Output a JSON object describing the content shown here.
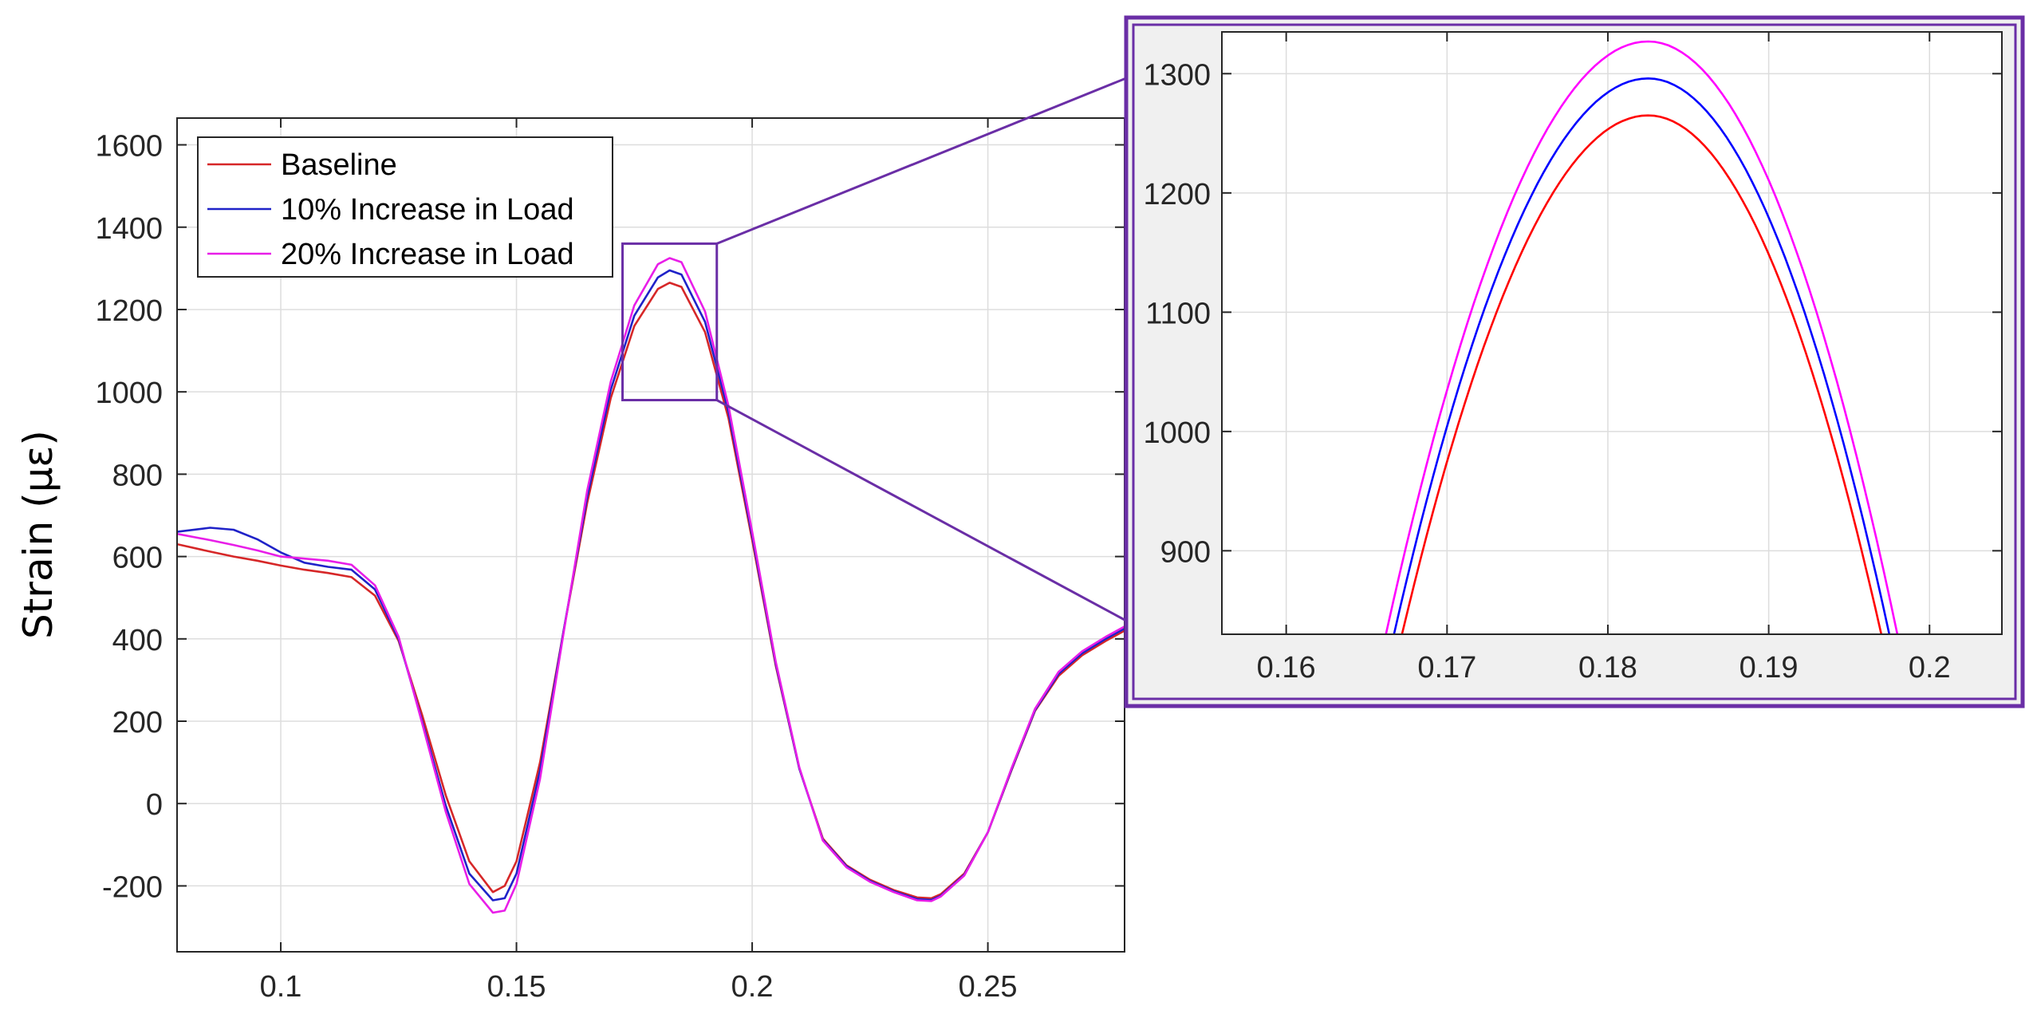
{
  "chart_data": [
    {
      "type": "line",
      "panel": "main",
      "title": "",
      "xlabel": "",
      "ylabel": "Strain (με)",
      "xlim": [
        0.078,
        0.279
      ],
      "ylim": [
        -360,
        1665
      ],
      "xticks": [
        0.1,
        0.15,
        0.2,
        0.25
      ],
      "xtick_labels": [
        "0.1",
        "0.15",
        "0.2",
        "0.25"
      ],
      "yticks": [
        -200,
        0,
        200,
        400,
        600,
        800,
        1000,
        1200,
        1400,
        1600
      ],
      "ytick_labels": [
        "-200",
        "0",
        "200",
        "400",
        "600",
        "800",
        "1000",
        "1200",
        "1400",
        "1600"
      ],
      "grid": true,
      "legend_position": "top-left",
      "series": [
        {
          "name": "Baseline",
          "color": "#d62728",
          "x": [
            0.078,
            0.085,
            0.09,
            0.095,
            0.1,
            0.105,
            0.11,
            0.115,
            0.12,
            0.125,
            0.13,
            0.135,
            0.14,
            0.145,
            0.1475,
            0.15,
            0.155,
            0.16,
            0.165,
            0.17,
            0.175,
            0.18,
            0.1825,
            0.185,
            0.19,
            0.195,
            0.2,
            0.205,
            0.21,
            0.215,
            0.22,
            0.225,
            0.23,
            0.235,
            0.238,
            0.24,
            0.245,
            0.25,
            0.255,
            0.26,
            0.265,
            0.27,
            0.275,
            0.279
          ],
          "y": [
            630,
            612,
            600,
            590,
            578,
            568,
            560,
            550,
            505,
            395,
            215,
            20,
            -140,
            -215,
            -200,
            -140,
            100,
            420,
            730,
            985,
            1160,
            1250,
            1265,
            1255,
            1145,
            935,
            640,
            335,
            85,
            -85,
            -150,
            -185,
            -210,
            -228,
            -230,
            -220,
            -170,
            -70,
            80,
            225,
            310,
            360,
            395,
            420
          ]
        },
        {
          "name": "10% Increase in Load",
          "color": "#1f22c8",
          "x": [
            0.078,
            0.085,
            0.09,
            0.095,
            0.1,
            0.105,
            0.11,
            0.115,
            0.12,
            0.125,
            0.13,
            0.135,
            0.14,
            0.145,
            0.1475,
            0.15,
            0.155,
            0.16,
            0.165,
            0.17,
            0.175,
            0.18,
            0.1825,
            0.185,
            0.19,
            0.195,
            0.2,
            0.205,
            0.21,
            0.215,
            0.22,
            0.225,
            0.23,
            0.235,
            0.238,
            0.24,
            0.245,
            0.25,
            0.255,
            0.26,
            0.265,
            0.27,
            0.275,
            0.279
          ],
          "y": [
            660,
            670,
            665,
            642,
            610,
            585,
            575,
            568,
            520,
            400,
            200,
            -5,
            -170,
            -235,
            -230,
            -170,
            80,
            420,
            745,
            1005,
            1185,
            1278,
            1295,
            1285,
            1170,
            950,
            650,
            340,
            85,
            -88,
            -152,
            -188,
            -213,
            -232,
            -234,
            -224,
            -173,
            -70,
            82,
            227,
            315,
            365,
            400,
            425
          ]
        },
        {
          "name": "20% Increase in Load",
          "color": "#e81ee8",
          "x": [
            0.078,
            0.085,
            0.09,
            0.095,
            0.1,
            0.105,
            0.11,
            0.115,
            0.12,
            0.125,
            0.13,
            0.135,
            0.14,
            0.145,
            0.1475,
            0.15,
            0.155,
            0.16,
            0.165,
            0.17,
            0.175,
            0.18,
            0.1825,
            0.185,
            0.19,
            0.195,
            0.2,
            0.205,
            0.21,
            0.215,
            0.22,
            0.225,
            0.23,
            0.235,
            0.238,
            0.24,
            0.245,
            0.25,
            0.255,
            0.26,
            0.265,
            0.27,
            0.275,
            0.279
          ],
          "y": [
            655,
            640,
            628,
            615,
            600,
            595,
            590,
            580,
            530,
            405,
            195,
            -20,
            -195,
            -265,
            -260,
            -195,
            60,
            415,
            760,
            1025,
            1210,
            1310,
            1325,
            1315,
            1195,
            965,
            660,
            345,
            88,
            -90,
            -155,
            -190,
            -215,
            -235,
            -237,
            -226,
            -175,
            -70,
            85,
            230,
            320,
            370,
            405,
            430
          ]
        }
      ]
    },
    {
      "type": "line",
      "panel": "inset",
      "title": "",
      "xlabel": "",
      "ylabel": "",
      "xlim": [
        0.156,
        0.2045
      ],
      "ylim": [
        830,
        1335
      ],
      "xticks": [
        0.16,
        0.17,
        0.18,
        0.19,
        0.2
      ],
      "xtick_labels": [
        "0.16",
        "0.17",
        "0.18",
        "0.19",
        "0.2"
      ],
      "yticks": [
        900,
        1000,
        1100,
        1200,
        1300
      ],
      "ytick_labels": [
        "900",
        "1000",
        "1100",
        "1200",
        "1300"
      ],
      "grid": true,
      "zoom_region": {
        "x": [
          0.1725,
          0.1925
        ],
        "y": [
          980,
          1360
        ]
      },
      "series": [
        {
          "name": "Baseline",
          "color": "#ff0000",
          "peak_x": 0.1825,
          "peak_y": 1265,
          "x_at_830": [
            0.1672,
            0.197
          ]
        },
        {
          "name": "10% Increase in Load",
          "color": "#0000ff",
          "peak_x": 0.1825,
          "peak_y": 1296,
          "x_at_830": [
            0.1667,
            0.1975
          ]
        },
        {
          "name": "20% Increase in Load",
          "color": "#ff00ff",
          "peak_x": 0.1825,
          "peak_y": 1327,
          "x_at_830": [
            0.1662,
            0.198
          ]
        }
      ]
    }
  ]
}
